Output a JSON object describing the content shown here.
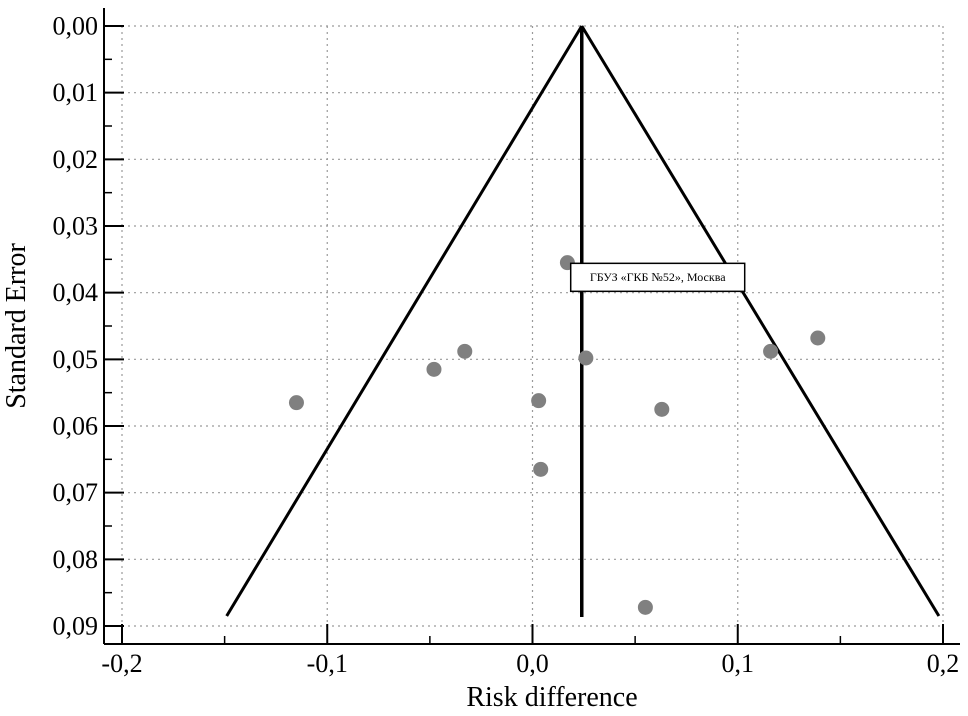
{
  "chart_data": {
    "type": "scatter",
    "title": "",
    "xlabel": "Risk difference",
    "ylabel": "Standard Error",
    "xlim": [
      -0.2,
      0.2
    ],
    "ylim": [
      0.0,
      0.09
    ],
    "y_inverted": true,
    "grid": true,
    "x_ticks": [
      {
        "value": -0.2,
        "label": "-0,2"
      },
      {
        "value": -0.1,
        "label": "-0,1"
      },
      {
        "value": 0.0,
        "label": "0,0"
      },
      {
        "value": 0.1,
        "label": "0,1"
      },
      {
        "value": 0.2,
        "label": "0,2"
      }
    ],
    "y_ticks": [
      {
        "value": 0.0,
        "label": "0,00"
      },
      {
        "value": 0.01,
        "label": "0,01"
      },
      {
        "value": 0.02,
        "label": "0,02"
      },
      {
        "value": 0.03,
        "label": "0,03"
      },
      {
        "value": 0.04,
        "label": "0,04"
      },
      {
        "value": 0.05,
        "label": "0,05"
      },
      {
        "value": 0.06,
        "label": "0,06"
      },
      {
        "value": 0.07,
        "label": "0,07"
      },
      {
        "value": 0.08,
        "label": "0,08"
      },
      {
        "value": 0.09,
        "label": "0,09"
      }
    ],
    "pooled_estimate": 0.024,
    "funnel_limits": {
      "apex": {
        "x": 0.024,
        "se": 0.0
      },
      "left_base": {
        "x": -0.149,
        "se": 0.0885
      },
      "right_base": {
        "x": 0.198,
        "se": 0.0885
      }
    },
    "points": [
      {
        "x": 0.017,
        "se": 0.0355
      },
      {
        "x": 0.139,
        "se": 0.0468
      },
      {
        "x": 0.116,
        "se": 0.0488
      },
      {
        "x": -0.033,
        "se": 0.0488
      },
      {
        "x": -0.048,
        "se": 0.0515
      },
      {
        "x": 0.026,
        "se": 0.0498
      },
      {
        "x": 0.003,
        "se": 0.0562
      },
      {
        "x": 0.063,
        "se": 0.0575
      },
      {
        "x": -0.115,
        "se": 0.0565
      },
      {
        "x": 0.004,
        "se": 0.0665
      },
      {
        "x": 0.055,
        "se": 0.0872
      }
    ],
    "annotation": {
      "text": "ГБУЗ «ГКБ №52», Москва",
      "x": 0.061,
      "se": 0.0377
    }
  }
}
